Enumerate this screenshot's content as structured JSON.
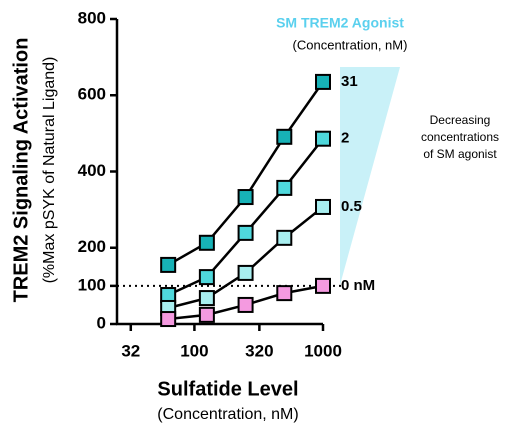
{
  "chart_data": {
    "type": "line",
    "y_title": "TREM2 Signaling Activation",
    "y_subtitle": "(%Max pSYK of Natural Ligand)",
    "x_title": "Sulfatide Level",
    "x_subtitle": "(Concentration, nM)",
    "legend_title": "SM TREM2 Agonist",
    "legend_subtitle": "(Concentration, nM)",
    "annotation": [
      "Decreasing",
      "concentrations",
      "of SM agonist"
    ],
    "x": [
      62.5,
      125,
      250,
      500,
      1000
    ],
    "xscale": "log",
    "xlim": [
      25,
      1000
    ],
    "xticks": [
      32,
      100,
      320,
      1000
    ],
    "ylim": [
      0,
      800
    ],
    "yticks": [
      0,
      100,
      200,
      400,
      600,
      800
    ],
    "reference_line": 100,
    "series": [
      {
        "name": "31",
        "color": "#17b2b7",
        "values": [
          155,
          213,
          333,
          491,
          635
        ]
      },
      {
        "name": "2",
        "color": "#4fd8dc",
        "values": [
          76,
          123,
          239,
          357,
          486
        ]
      },
      {
        "name": "0.5",
        "color": "#a8eeef",
        "values": [
          42,
          68,
          134,
          226,
          307
        ]
      },
      {
        "name": "0 nM",
        "color": "#f49ae0",
        "values": [
          13,
          24,
          50,
          81,
          100
        ]
      }
    ]
  }
}
